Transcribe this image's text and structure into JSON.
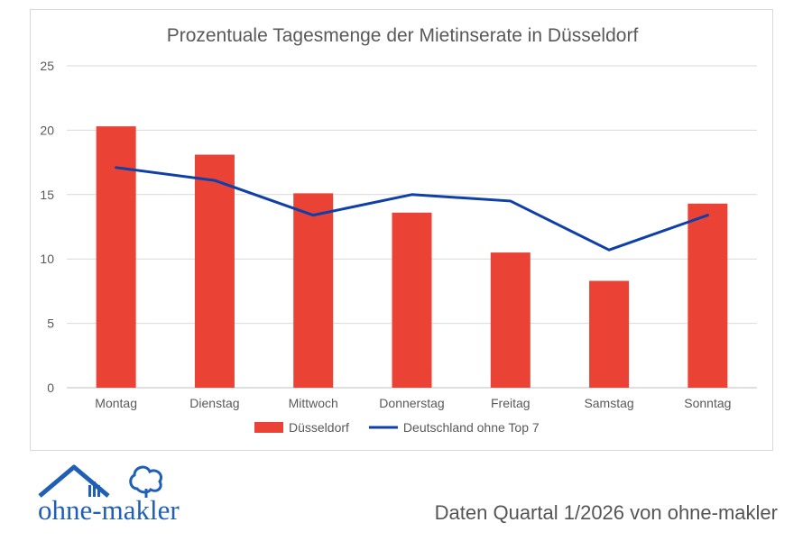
{
  "chart_data": {
    "type": "bar",
    "title": "Prozentuale Tagesmenge der Mietinserate in Düsseldorf",
    "categories": [
      "Montag",
      "Dienstag",
      "Mittwoch",
      "Donnerstag",
      "Freitag",
      "Samstag",
      "Sonntag"
    ],
    "series": [
      {
        "name": "Düsseldorf",
        "type": "bar",
        "color": "#ea4335",
        "values": [
          20.3,
          18.1,
          15.1,
          13.6,
          10.5,
          8.3,
          14.3
        ]
      },
      {
        "name": "Deutschland ohne Top 7",
        "type": "line",
        "color": "#0f3fa8",
        "values": [
          17.1,
          16.1,
          13.4,
          15.0,
          14.5,
          10.7,
          13.4
        ]
      }
    ],
    "ylim": [
      0,
      25
    ],
    "yticks": [
      0,
      5,
      10,
      15,
      20,
      25
    ],
    "grid": true,
    "legend": "bottom"
  },
  "logo": {
    "text": "ohne-makler",
    "color": "#1f5fb5",
    "icon": "house-and-tree-icon"
  },
  "footer": {
    "note": "Daten Quartal 1/2026 von ohne-makler"
  }
}
